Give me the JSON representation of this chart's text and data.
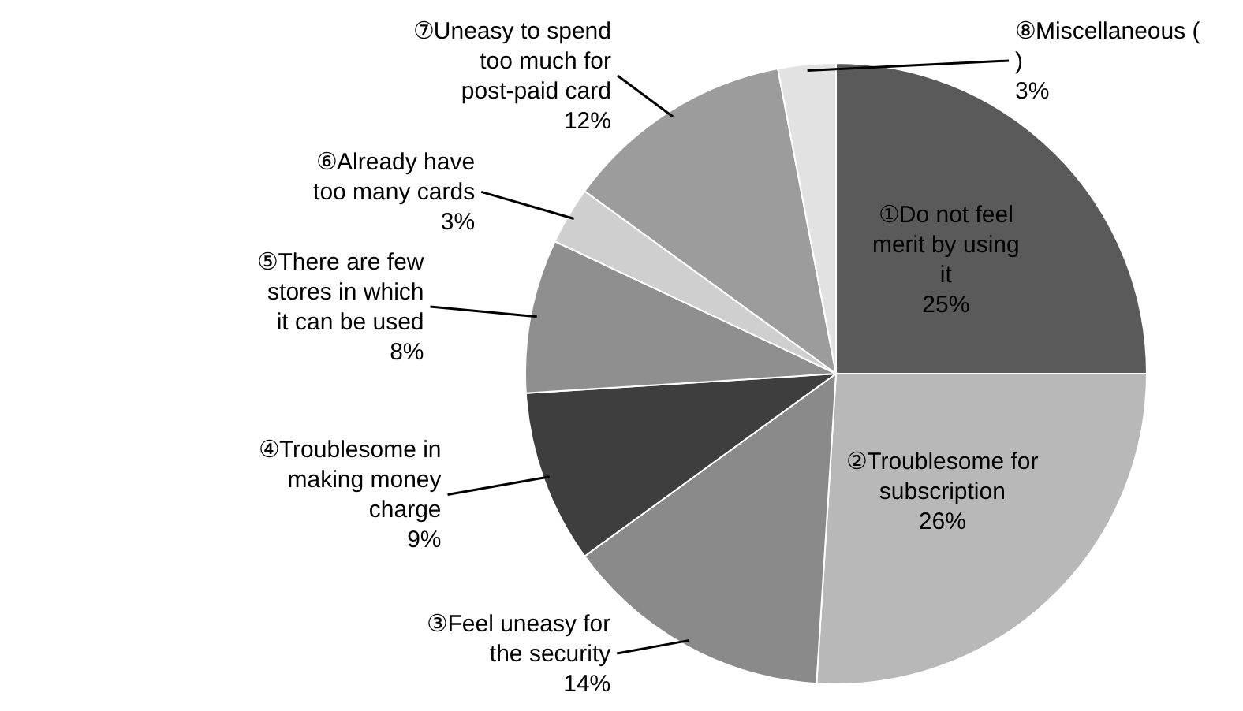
{
  "chart_data": {
    "type": "pie",
    "categories": [
      "①Do not feel merit by using it",
      "②Troublesome for subscription",
      "③Feel uneasy for the security",
      "④Troublesome in making money charge",
      "⑤There are few stores in which it can be used",
      "⑥Already have too many cards",
      "⑦Uneasy to spend too much for post-paid card",
      "⑧Miscellaneous ( )"
    ],
    "values": [
      25,
      26,
      14,
      9,
      8,
      3,
      12,
      3
    ],
    "colors": [
      "#5a5a5a",
      "#b8b8b8",
      "#8a8a8a",
      "#3e3e3e",
      "#8f8f8f",
      "#cfcfcf",
      "#9c9c9c",
      "#e2e2e2"
    ],
    "value_labels": [
      "25%",
      "26%",
      "14%",
      "9%",
      "8%",
      "3%",
      "12%",
      "3%"
    ]
  }
}
